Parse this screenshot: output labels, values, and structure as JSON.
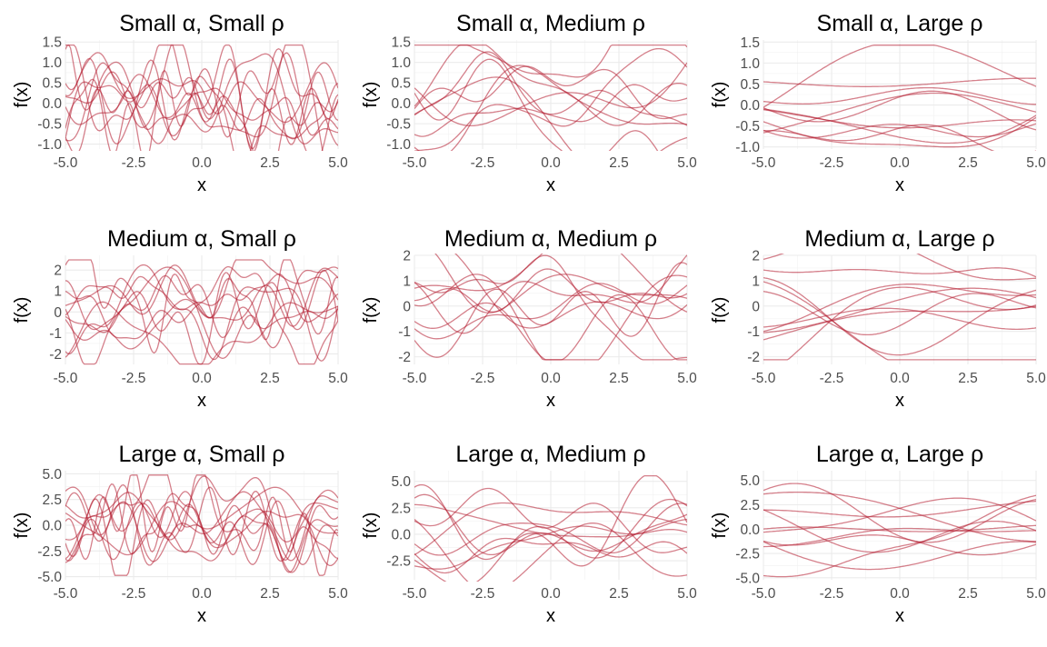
{
  "chart_data": [
    {
      "type": "line",
      "title": "Small α, Small ρ",
      "xlabel": "x",
      "ylabel": "f(x)",
      "xlim": [
        -5,
        5
      ],
      "ylim": [
        -1.12,
        1.55
      ],
      "xticks": [
        -5,
        -2.5,
        0,
        2.5,
        5
      ],
      "xtick_labels": [
        "-5.0",
        "-2.5",
        "0.0",
        "2.5",
        "5.0"
      ],
      "yticks": [
        -1,
        -0.5,
        0,
        0.5,
        1,
        1.5
      ],
      "ytick_labels": [
        "-1.0",
        "-0.5",
        "0.0",
        "0.5",
        "1.0",
        "1.5"
      ],
      "n_series": 10,
      "amplitude": 0.7,
      "length_scale": 0.45,
      "series_color": "#b2182b",
      "grid": true,
      "seed": 11
    },
    {
      "type": "line",
      "title": "Small α, Medium ρ",
      "xlabel": "x",
      "ylabel": "f(x)",
      "xlim": [
        -5,
        5
      ],
      "ylim": [
        -1.12,
        1.55
      ],
      "xticks": [
        -5,
        -2.5,
        0,
        2.5,
        5
      ],
      "xtick_labels": [
        "-5.0",
        "-2.5",
        "0.0",
        "2.5",
        "5.0"
      ],
      "yticks": [
        -1,
        -0.5,
        0,
        0.5,
        1,
        1.5
      ],
      "ytick_labels": [
        "-1.0",
        "-0.5",
        "0.0",
        "0.5",
        "1.0",
        "1.5"
      ],
      "n_series": 10,
      "amplitude": 0.65,
      "length_scale": 1.2,
      "series_color": "#b2182b",
      "grid": true,
      "seed": 23
    },
    {
      "type": "line",
      "title": "Small α, Large ρ",
      "xlabel": "x",
      "ylabel": "f(x)",
      "xlim": [
        -5,
        5
      ],
      "ylim": [
        -1.05,
        1.55
      ],
      "xticks": [
        -5,
        -2.5,
        0,
        2.5,
        5
      ],
      "xtick_labels": [
        "-5.0",
        "-2.5",
        "0.0",
        "2.5",
        "5.0"
      ],
      "yticks": [
        -1,
        -0.5,
        0,
        0.5,
        1,
        1.5
      ],
      "ytick_labels": [
        "-1.0",
        "-0.5",
        "0.0",
        "0.5",
        "1.0",
        "1.5"
      ],
      "n_series": 10,
      "amplitude": 0.6,
      "length_scale": 3.0,
      "series_color": "#b2182b",
      "grid": true,
      "seed": 37
    },
    {
      "type": "line",
      "title": "Medium α, Small ρ",
      "xlabel": "x",
      "ylabel": "f(x)",
      "xlim": [
        -5,
        5
      ],
      "ylim": [
        -2.5,
        2.7
      ],
      "xticks": [
        -5,
        -2.5,
        0,
        2.5,
        5
      ],
      "xtick_labels": [
        "-5.0",
        "-2.5",
        "0.0",
        "2.5",
        "5.0"
      ],
      "yticks": [
        -2,
        -1,
        0,
        1,
        2
      ],
      "ytick_labels": [
        "-2",
        "-1",
        "0",
        "1",
        "2"
      ],
      "n_series": 10,
      "amplitude": 1.2,
      "length_scale": 0.45,
      "series_color": "#b2182b",
      "grid": true,
      "seed": 41
    },
    {
      "type": "line",
      "title": "Medium α, Medium ρ",
      "xlabel": "x",
      "ylabel": "f(x)",
      "xlim": [
        -5,
        5
      ],
      "ylim": [
        -2.3,
        2.0
      ],
      "xticks": [
        -5,
        -2.5,
        0,
        2.5,
        5
      ],
      "xtick_labels": [
        "-5.0",
        "-2.5",
        "0.0",
        "2.5",
        "5.0"
      ],
      "yticks": [
        -2,
        -1,
        0,
        1,
        2
      ],
      "ytick_labels": [
        "-2",
        "-1",
        "0",
        "1",
        "2"
      ],
      "n_series": 10,
      "amplitude": 1.0,
      "length_scale": 1.2,
      "series_color": "#b2182b",
      "grid": true,
      "seed": 53
    },
    {
      "type": "line",
      "title": "Medium α, Large ρ",
      "xlabel": "x",
      "ylabel": "f(x)",
      "xlim": [
        -5,
        5
      ],
      "ylim": [
        -2.3,
        2.0
      ],
      "xticks": [
        -5,
        -2.5,
        0,
        2.5,
        5
      ],
      "xtick_labels": [
        "-5.0",
        "-2.5",
        "0.0",
        "2.5",
        "5.0"
      ],
      "yticks": [
        -2,
        -1,
        0,
        1,
        2
      ],
      "ytick_labels": [
        "-2",
        "-1",
        "0",
        "1",
        "2"
      ],
      "n_series": 10,
      "amplitude": 1.0,
      "length_scale": 3.0,
      "series_color": "#b2182b",
      "grid": true,
      "seed": 67
    },
    {
      "type": "line",
      "title": "Large α, Small ρ",
      "xlabel": "x",
      "ylabel": "f(x)",
      "xlim": [
        -5,
        5
      ],
      "ylim": [
        -5.3,
        5.3
      ],
      "xticks": [
        -5,
        -2.5,
        0,
        2.5,
        5
      ],
      "xtick_labels": [
        "-5.0",
        "-2.5",
        "0.0",
        "2.5",
        "5.0"
      ],
      "yticks": [
        -5,
        -2.5,
        0,
        2.5,
        5
      ],
      "ytick_labels": [
        "-5.0",
        "-2.5",
        "0.0",
        "2.5",
        "5.0"
      ],
      "n_series": 10,
      "amplitude": 2.3,
      "length_scale": 0.45,
      "series_color": "#b2182b",
      "grid": true,
      "seed": 71
    },
    {
      "type": "line",
      "title": "Large α, Medium ρ",
      "xlabel": "x",
      "ylabel": "f(x)",
      "xlim": [
        -5,
        5
      ],
      "ylim": [
        -4.3,
        6.0
      ],
      "xticks": [
        -5,
        -2.5,
        0,
        2.5,
        5
      ],
      "xtick_labels": [
        "-5.0",
        "-2.5",
        "0.0",
        "2.5",
        "5.0"
      ],
      "yticks": [
        -2.5,
        0,
        2.5,
        5
      ],
      "ytick_labels": [
        "-2.5",
        "0.0",
        "2.5",
        "5.0"
      ],
      "n_series": 10,
      "amplitude": 2.1,
      "length_scale": 1.2,
      "series_color": "#b2182b",
      "grid": true,
      "seed": 83
    },
    {
      "type": "line",
      "title": "Large α, Large ρ",
      "xlabel": "x",
      "ylabel": "f(x)",
      "xlim": [
        -5,
        5
      ],
      "ylim": [
        -5.2,
        6.0
      ],
      "xticks": [
        -5,
        -2.5,
        0,
        2.5,
        5
      ],
      "xtick_labels": [
        "-5.0",
        "-2.5",
        "0.0",
        "2.5",
        "5.0"
      ],
      "yticks": [
        -5,
        -2.5,
        0,
        2.5,
        5
      ],
      "ytick_labels": [
        "-5.0",
        "-2.5",
        "0.0",
        "2.5",
        "5.0"
      ],
      "n_series": 10,
      "amplitude": 2.2,
      "length_scale": 3.0,
      "series_color": "#b2182b",
      "grid": true,
      "seed": 97
    }
  ]
}
